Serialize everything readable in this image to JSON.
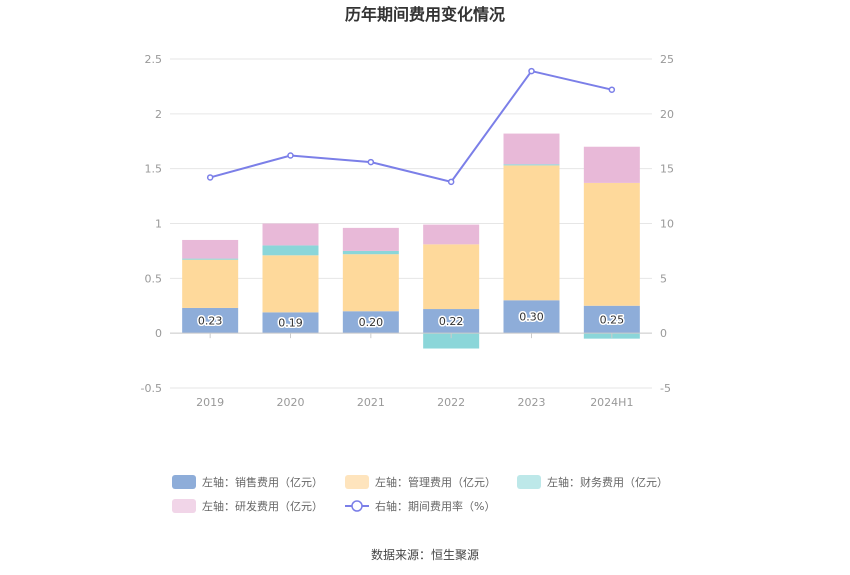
{
  "chart_data": {
    "type": "bar",
    "title": "历年期间费用变化情况",
    "categories": [
      "2019",
      "2020",
      "2021",
      "2022",
      "2023",
      "2024H1"
    ],
    "left_axis": {
      "min": -0.5,
      "max": 2.5,
      "ticks": [
        "2.5",
        "2",
        "1.5",
        "1",
        "0.5",
        "0",
        "-0.5"
      ],
      "tick_values": [
        2.5,
        2,
        1.5,
        1,
        0.5,
        0,
        -0.5
      ]
    },
    "right_axis": {
      "min": -5,
      "max": 25,
      "ticks": [
        "25",
        "20",
        "15",
        "10",
        "5",
        "0",
        "-5"
      ],
      "tick_values": [
        25,
        20,
        15,
        10,
        5,
        0,
        -5
      ]
    },
    "series": [
      {
        "name": "左轴：销售费用（亿元）",
        "kind": "bar",
        "color": "#8eadd9",
        "values": [
          0.23,
          0.19,
          0.2,
          0.22,
          0.3,
          0.25
        ],
        "labels": [
          "0.23",
          "0.19",
          "0.20",
          "0.22",
          "0.30",
          "0.25"
        ]
      },
      {
        "name": "左轴：管理费用（亿元）",
        "kind": "bar",
        "color": "#fed99b",
        "values": [
          0.44,
          0.52,
          0.52,
          0.59,
          1.23,
          1.12
        ]
      },
      {
        "name": "左轴：财务费用（亿元）",
        "kind": "bar",
        "color": "#8bd6d9",
        "values": [
          0.01,
          0.09,
          0.03,
          -0.14,
          0.01,
          -0.05
        ]
      },
      {
        "name": "左轴：研发费用（亿元）",
        "kind": "bar",
        "color": "#e8b9d8",
        "values": [
          0.17,
          0.2,
          0.21,
          0.18,
          0.28,
          0.33
        ]
      },
      {
        "name": "右轴：期间费用率（%）",
        "kind": "line",
        "color": "#7b7fe8",
        "values": [
          14.2,
          16.2,
          15.6,
          13.8,
          23.9,
          22.2
        ]
      }
    ],
    "legend_position": "bottom",
    "grid": true
  },
  "legend_swatch_colors": [
    "#8eadd9",
    "#fee4bd",
    "#bde8e9",
    "#f1d5e8"
  ],
  "source": "数据来源：恒生聚源"
}
